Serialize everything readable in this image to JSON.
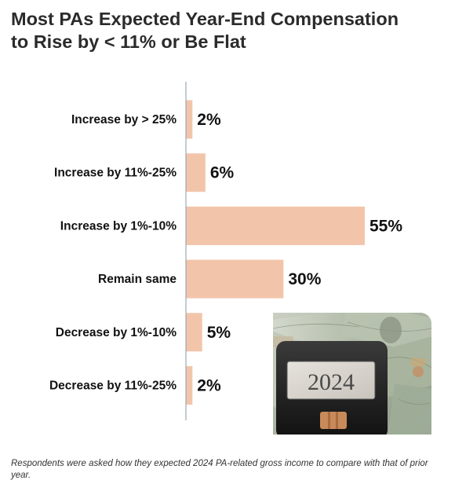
{
  "title_lines": [
    "Most PAs Expected Year-End Compensation",
    "to Rise by < 11% or Be Flat"
  ],
  "footnote": "Respondents were asked how they expected 2024 PA-related gross income to compare with that of prior year.",
  "photo_text": "2024",
  "colors": {
    "bar": "#f2c5ab",
    "axis": "#8a9aa8",
    "text": "#111111"
  },
  "chart_data": {
    "type": "bar",
    "orientation": "horizontal",
    "title": "Most PAs Expected Year-End Compensation to Rise by < 11% or Be Flat",
    "categories": [
      "Increase by > 25%",
      "Increase by 11%-25%",
      "Increase by 1%-10%",
      "Remain same",
      "Decrease by 1%-10%",
      "Decrease by 11%-25%"
    ],
    "values": [
      2,
      6,
      55,
      30,
      5,
      2
    ],
    "value_labels": [
      "2%",
      "6%",
      "55%",
      "30%",
      "5%",
      "2%"
    ],
    "unit": "%",
    "xlim": [
      0,
      60
    ],
    "grid": false,
    "legend": "none"
  }
}
